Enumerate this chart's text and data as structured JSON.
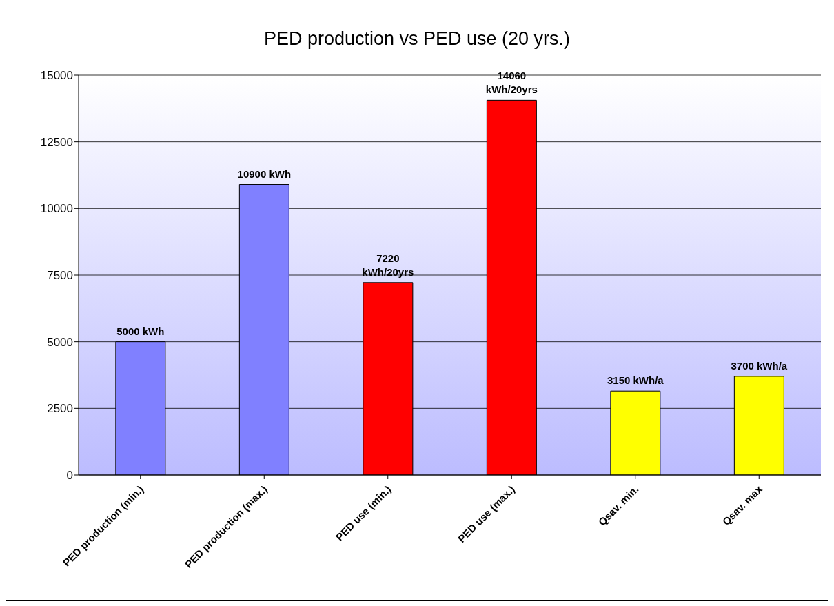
{
  "chart_data": {
    "type": "bar",
    "title": "PED production vs PED use (20 yrs.)",
    "categories": [
      "PED production (min.)",
      "PED production (max.)",
      "PED use (min.)",
      "PED use (max.)",
      "Qsav. min.",
      "Qsav. max"
    ],
    "values": [
      5000,
      10900,
      7220,
      14060,
      3150,
      3700
    ],
    "colors": [
      "#8080ff",
      "#8080ff",
      "#ff0000",
      "#ff0000",
      "#ffff00",
      "#ffff00"
    ],
    "value_labels": [
      "5000 kWh",
      "10900 kWh",
      "7220 kWh/20yrs",
      "14060 kWh/20yrs",
      "3150 kWh/a",
      "3700 kWh/a"
    ],
    "ylim": [
      0,
      15000
    ],
    "yticks": [
      0,
      2500,
      5000,
      7500,
      10000,
      12500,
      15000
    ],
    "grid": "y"
  }
}
